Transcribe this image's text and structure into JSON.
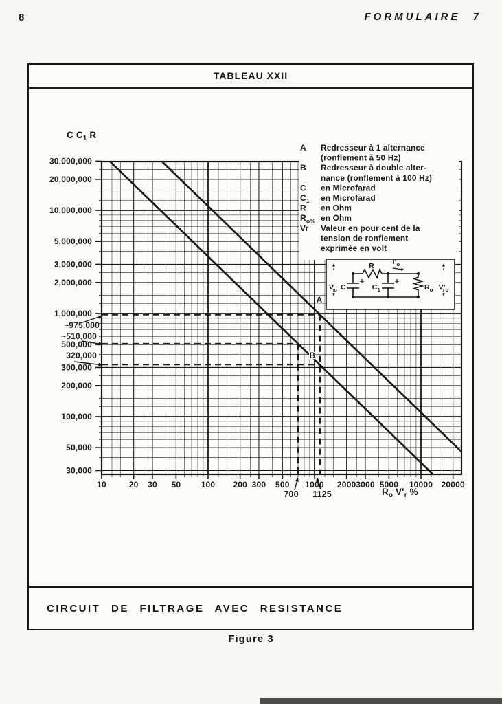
{
  "page": {
    "number": "8",
    "journal_header": "FORMULAIRE 7",
    "figure_label": "Figure 3"
  },
  "panel": {
    "title": "TABLEAU XXII",
    "caption": "CIRCUIT DE FILTRAGE AVEC RESISTANCE"
  },
  "chart_data": {
    "type": "line",
    "scale": "log-log",
    "ink_color": "#181815",
    "x_axis": {
      "label": "R_o V′_r %",
      "min": 10,
      "max": 24000,
      "ticks": [
        {
          "v": 10,
          "label": "10"
        },
        {
          "v": 20,
          "label": "20"
        },
        {
          "v": 30,
          "label": "30"
        },
        {
          "v": 50,
          "label": "50"
        },
        {
          "v": 100,
          "label": "100"
        },
        {
          "v": 200,
          "label": "200"
        },
        {
          "v": 300,
          "label": "300"
        },
        {
          "v": 500,
          "label": "500"
        },
        {
          "v": 1000,
          "label": "1000"
        },
        {
          "v": 2000,
          "label": "2000"
        },
        {
          "v": 3000,
          "label": "3000"
        },
        {
          "v": 5000,
          "label": "5000"
        },
        {
          "v": 10000,
          "label": "10000"
        },
        {
          "v": 20000,
          "label": "20000"
        }
      ]
    },
    "y_axis": {
      "label": "C C_1 R",
      "min": 27500,
      "max": 29700000,
      "ticks": [
        {
          "v": 30000,
          "label": "30,000"
        },
        {
          "v": 50000,
          "label": "50,000"
        },
        {
          "v": 100000,
          "label": "100,000"
        },
        {
          "v": 200000,
          "label": "200,000"
        },
        {
          "v": 300000,
          "label": "300,000"
        },
        {
          "v": 500000,
          "label": "500,000"
        },
        {
          "v": 1000000,
          "label": "1,000,000"
        },
        {
          "v": 2000000,
          "label": "2,000,000"
        },
        {
          "v": 3000000,
          "label": "3,000,000"
        },
        {
          "v": 5000000,
          "label": "5,000,000"
        },
        {
          "v": 10000000,
          "label": "10,000,000"
        },
        {
          "v": 20000000,
          "label": "20,000,000"
        },
        {
          "v": 30000000,
          "label": "30,000,000"
        }
      ]
    },
    "series": [
      {
        "name": "A",
        "label": "A",
        "constant_cc1r_x_rovr": 1097000000,
        "label_at": [
          1109,
          1360000
        ]
      },
      {
        "name": "B",
        "label": "B",
        "constant_cc1r_x_rovr": 357000000,
        "label_at": [
          955,
          392000
        ]
      }
    ],
    "annotations": {
      "horizontal": [
        {
          "label": "~975,000",
          "value": 975000,
          "to_x": 1125,
          "label_pos": [
            145,
            477
          ],
          "arrow": [
            117,
            470,
            150,
            459
          ]
        },
        {
          "label": "~510,000",
          "value": 510000,
          "to_x": 700,
          "label_pos": [
            141,
            493
          ],
          "arrow": [
            119,
            496,
            150,
            501
          ]
        },
        {
          "label": "320,000",
          "value": 320000,
          "to_x": 1125,
          "label_pos": [
            141,
            521
          ],
          "arrow": [
            108,
            526,
            150,
            531
          ]
        }
      ],
      "vertical": [
        {
          "label": "700",
          "value": 700,
          "from_y": 510000,
          "label_pos": [
            424,
            723
          ],
          "arrow": [
            429,
            713,
            434,
            694
          ]
        },
        {
          "label": "1125",
          "value": 1125,
          "from_y": 975000,
          "label_pos": [
            469,
            723
          ],
          "arrow": [
            467,
            712,
            461,
            694
          ]
        }
      ]
    },
    "legend": {
      "items": [
        {
          "term": "A",
          "lines": [
            "Redresseur à 1 alternance",
            "(ronflement à 50 Hz)"
          ]
        },
        {
          "term": "B",
          "lines": [
            "Redresseur à double alter-",
            "nance (ronflement à 100 Hz)"
          ]
        },
        {
          "term": "C",
          "lines": [
            "en Microfarad"
          ]
        },
        {
          "term": "C_1",
          "lines": [
            "en Microfarad"
          ]
        },
        {
          "term": "R",
          "lines": [
            "en Ohm"
          ]
        },
        {
          "term": "R_o%",
          "lines": [
            "en Ohm"
          ]
        },
        {
          "term": "Vr",
          "lines": [
            "Valeur en pour cent de la",
            "tension de ronflement",
            "exprimée en volt"
          ]
        }
      ]
    },
    "inset_circuit": {
      "labels": {
        "input_voltage": "V_o",
        "cap1": "C",
        "resistor": "R",
        "cap2": "C_1",
        "load_current": "I′_o",
        "load_resistor": "R_o",
        "output_voltage": "V′_o"
      }
    }
  }
}
